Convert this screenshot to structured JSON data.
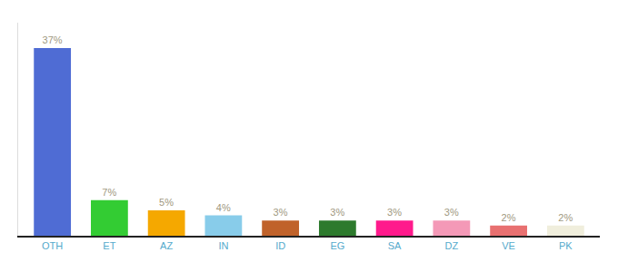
{
  "chart_data": {
    "type": "bar",
    "categories": [
      "OTH",
      "ET",
      "AZ",
      "IN",
      "ID",
      "EG",
      "SA",
      "DZ",
      "VE",
      "PK"
    ],
    "values": [
      37,
      7,
      5,
      4,
      3,
      3,
      3,
      3,
      2,
      2
    ],
    "value_labels": [
      "37%",
      "7%",
      "5%",
      "4%",
      "3%",
      "3%",
      "3%",
      "3%",
      "2%",
      "2%"
    ],
    "colors": [
      "#4f6cd4",
      "#33cc33",
      "#f5a800",
      "#88ccea",
      "#c0622a",
      "#2d7a2d",
      "#ff1a8c",
      "#f499b7",
      "#e87070",
      "#f0eedc"
    ],
    "ylim": [
      0,
      42
    ],
    "grid": false,
    "data_labels": true,
    "tick_labels": "x"
  }
}
